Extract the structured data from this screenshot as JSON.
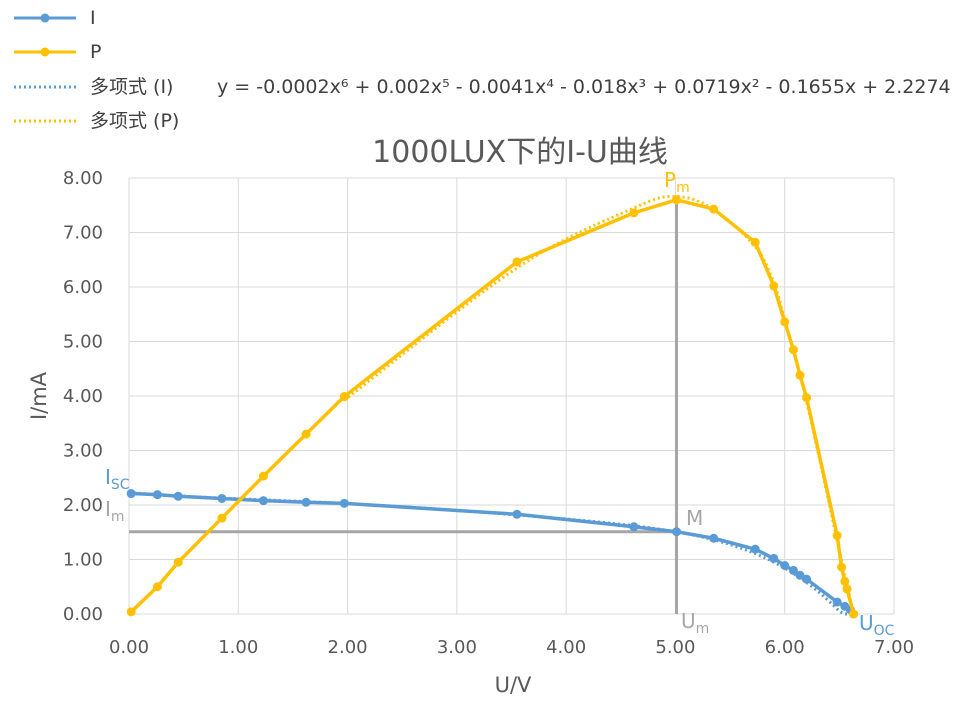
{
  "colors": {
    "I": "#5B9BD5",
    "P": "#FFC000",
    "guide": "#A6A6A6",
    "grid": "#D9D9D9"
  },
  "legend": {
    "items": [
      {
        "key": "I",
        "label": "I",
        "style": "solid"
      },
      {
        "key": "P",
        "label": "P",
        "style": "solid"
      },
      {
        "key": "I",
        "label": "多项式 (I)",
        "style": "dotted"
      },
      {
        "key": "P",
        "label": "多项式 (P)",
        "style": "dotted"
      }
    ],
    "equation": "y = -0.0002x⁶ + 0.002x⁵ - 0.0041x⁴ - 0.018x³ + 0.0719x² - 0.1655x + 2.2274"
  },
  "annotations": {
    "isc": {
      "main": "I",
      "sub": "SC"
    },
    "im": {
      "main": "I",
      "sub": "m"
    },
    "pm": {
      "main": "P",
      "sub": "m"
    },
    "um": {
      "main": "U",
      "sub": "m"
    },
    "uoc": {
      "main": "U",
      "sub": "OC"
    },
    "m": "M"
  },
  "chart_data": {
    "type": "line",
    "title": "1000LUX下的I-U曲线",
    "xlabel": "U/V",
    "ylabel": "I/mA",
    "xlim": [
      0,
      7
    ],
    "ylim": [
      0,
      8
    ],
    "x_ticks": [
      "0.00",
      "1.00",
      "2.00",
      "3.00",
      "4.00",
      "5.00",
      "6.00",
      "7.00"
    ],
    "y_ticks": [
      "0.00",
      "1.00",
      "2.00",
      "3.00",
      "4.00",
      "5.00",
      "6.00",
      "7.00",
      "8.00"
    ],
    "grid": true,
    "legend_position": "top-left",
    "series": [
      {
        "name": "I",
        "x": [
          0.02,
          0.26,
          0.45,
          0.85,
          1.23,
          1.62,
          1.97,
          3.55,
          4.62,
          5.01,
          5.35,
          5.73,
          5.9,
          6.0,
          6.08,
          6.14,
          6.2,
          6.48,
          6.55,
          6.6,
          6.63
        ],
        "y": [
          2.21,
          2.19,
          2.16,
          2.12,
          2.08,
          2.05,
          2.03,
          1.83,
          1.6,
          1.51,
          1.39,
          1.19,
          1.02,
          0.89,
          0.8,
          0.71,
          0.64,
          0.22,
          0.14,
          0.08,
          0.0
        ]
      },
      {
        "name": "P",
        "x": [
          0.02,
          0.26,
          0.45,
          0.85,
          1.23,
          1.62,
          1.97,
          3.55,
          4.62,
          5.01,
          5.35,
          5.73,
          5.9,
          6.0,
          6.08,
          6.14,
          6.2,
          6.48,
          6.52,
          6.55,
          6.57,
          6.63
        ],
        "y": [
          0.04,
          0.5,
          0.95,
          1.76,
          2.53,
          3.3,
          3.99,
          6.46,
          7.36,
          7.6,
          7.43,
          6.82,
          6.02,
          5.36,
          4.85,
          4.38,
          3.97,
          1.44,
          0.86,
          0.6,
          0.46,
          0.0
        ]
      },
      {
        "name": "多项式 (I)",
        "trendline_of": "I",
        "coefficients_desc": [
          -0.0002,
          0.002,
          -0.0041,
          -0.018,
          0.0719,
          -0.1655,
          2.2274
        ],
        "x_range": [
          0,
          6.63
        ]
      },
      {
        "name": "多项式 (P)",
        "trendline_of": "P",
        "x": [
          1.97,
          3.55,
          4.62,
          5.01,
          5.35,
          5.73,
          5.9,
          6.0,
          6.2,
          6.48,
          6.63
        ],
        "y": [
          3.92,
          6.35,
          7.45,
          7.66,
          7.42,
          6.74,
          6.08,
          5.4,
          3.9,
          1.35,
          0.0
        ]
      }
    ],
    "reference_point": {
      "label": "M",
      "x": 5.01,
      "y": 1.51,
      "p": 7.6
    }
  }
}
